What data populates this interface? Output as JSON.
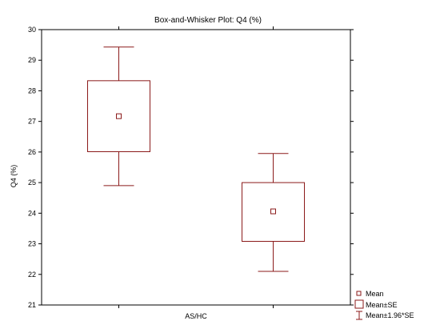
{
  "chart_data": {
    "type": "box",
    "title": "Box-and-Whisker Plot: Q4 (%)",
    "xlabel": "AS/HC",
    "ylabel": "Q4 (%)",
    "ylim": [
      21,
      30
    ],
    "yticks": [
      21,
      22,
      23,
      24,
      25,
      26,
      27,
      28,
      29,
      30
    ],
    "groups": [
      {
        "mean": 27.17,
        "se_low": 26.01,
        "se_high": 28.33,
        "ci_low": 24.9,
        "ci_high": 29.43
      },
      {
        "mean": 24.06,
        "se_low": 23.08,
        "se_high": 25.0,
        "ci_low": 22.1,
        "ci_high": 25.95
      }
    ],
    "legend": {
      "position": "bottom-right",
      "entries": [
        "Mean",
        "Mean±SE",
        "Mean±1.96*SE"
      ]
    },
    "colors": {
      "series": "#8b1a1a",
      "axes": "#000000",
      "text": "#000000"
    }
  }
}
